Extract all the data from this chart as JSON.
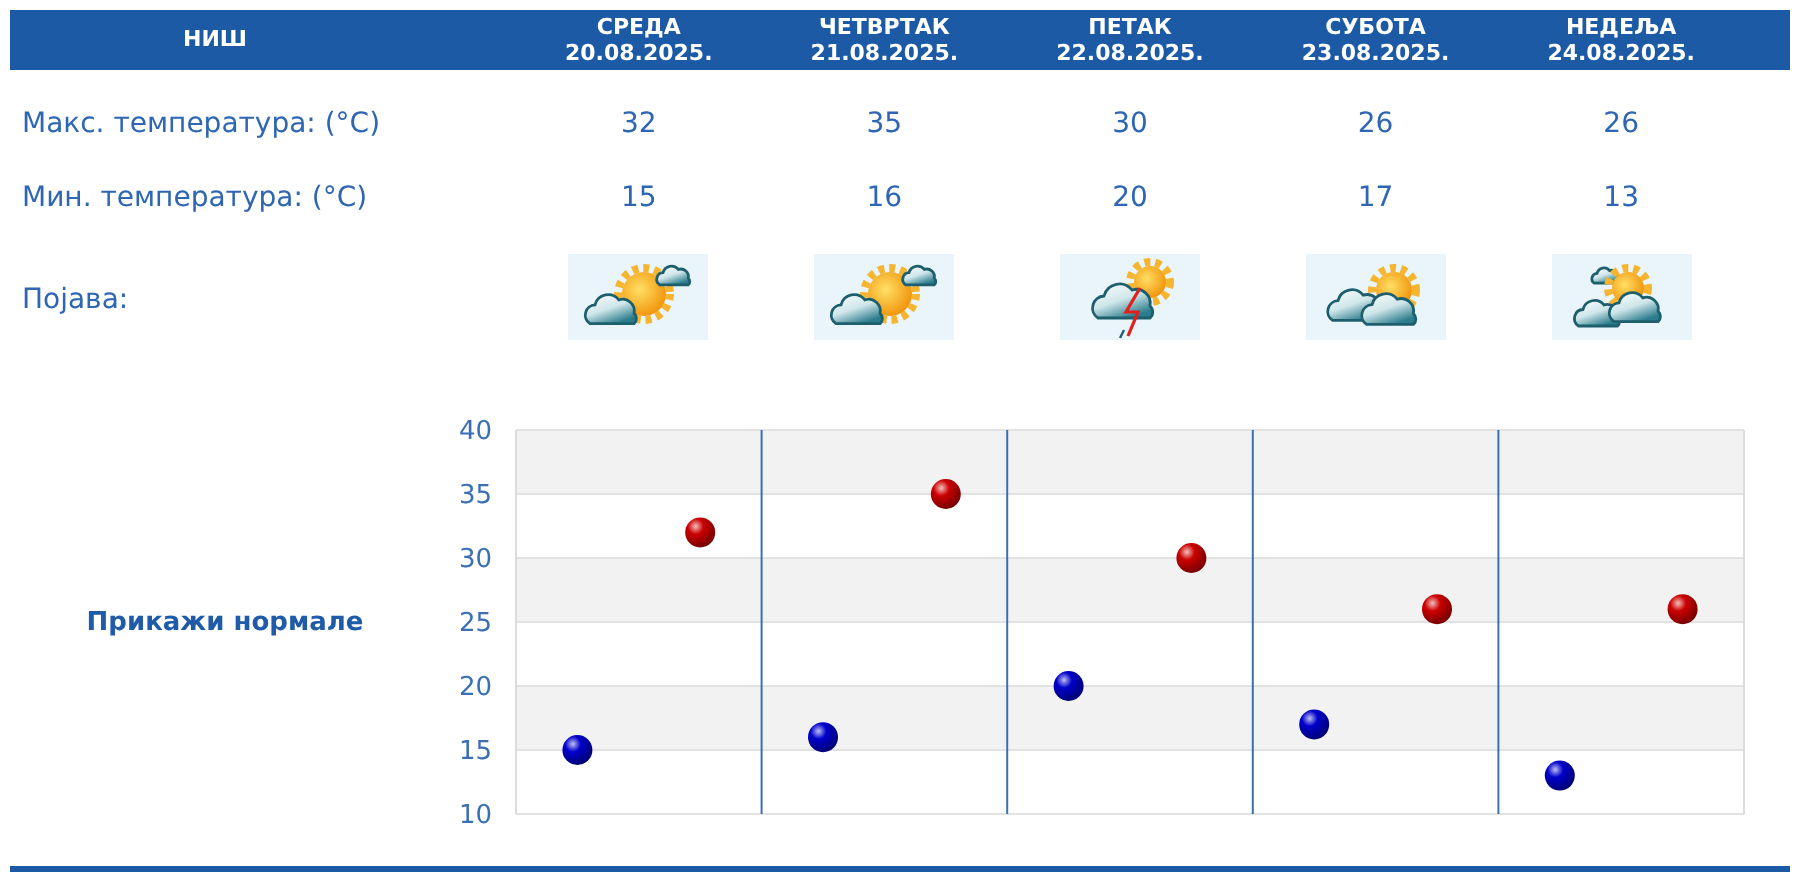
{
  "chart_data": {
    "type": "scatter",
    "title": "НИШ",
    "categories": [
      null,
      null,
      null,
      null,
      null
    ],
    "series": [
      {
        "color": "#cc0000",
        "values": [
          32,
          35,
          30,
          26,
          26
        ]
      },
      {
        "color": "#0000cc",
        "values": [
          15,
          16,
          20,
          17,
          13
        ]
      }
    ],
    "ylim": [
      10,
      40
    ],
    "yticks": [
      10,
      15,
      20,
      25,
      30,
      35,
      40
    ],
    "grid": true,
    "marker": "circle",
    "data_labels": true,
    "annotations": [
      "СРЕДА\n20.08.2025.",
      "ЧЕТВРТАК\n21.08.2025.",
      "ПЕТАК\n22.08.2025.",
      "СУБОТА\n23.08.2025.",
      "НЕДЕЉА\n24.08.2025.",
      "Макс. температура: (°C)",
      "Мин. температура: (°C)",
      "Појава:",
      "Прикажи нормале"
    ]
  }
}
